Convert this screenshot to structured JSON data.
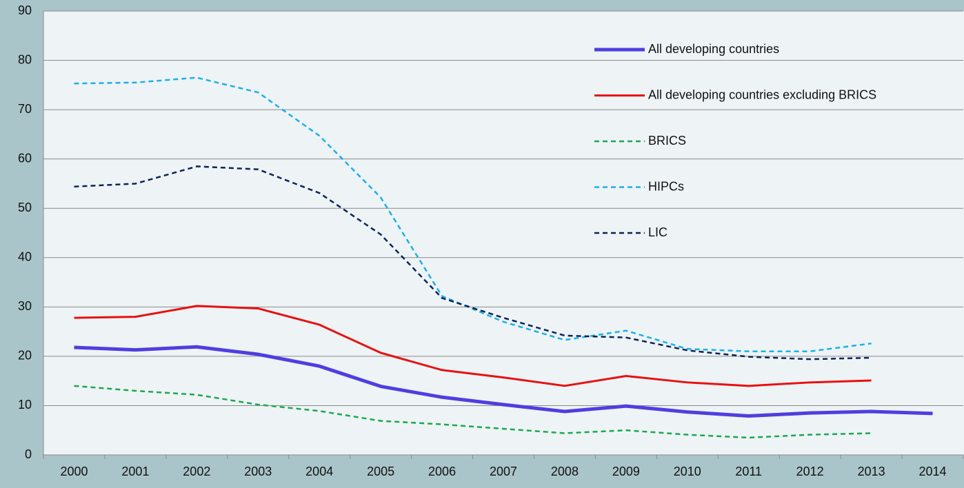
{
  "chart_data": {
    "type": "line",
    "categories": [
      "2000",
      "2001",
      "2002",
      "2003",
      "2004",
      "2005",
      "2006",
      "2007",
      "2008",
      "2009",
      "2010",
      "2011",
      "2012",
      "2013",
      "2014"
    ],
    "series": [
      {
        "name": "All developing countries",
        "color": "#4f3ee0",
        "dashed": false,
        "values": [
          21.8,
          21.3,
          21.9,
          20.4,
          18.0,
          13.9,
          11.7,
          10.2,
          8.8,
          9.9,
          8.7,
          7.9,
          8.5,
          8.8,
          8.4
        ]
      },
      {
        "name": "All developing countries excluding BRICS",
        "color": "#e81010",
        "dashed": false,
        "values": [
          27.8,
          28.0,
          30.2,
          29.7,
          26.4,
          20.7,
          17.2,
          15.7,
          14.0,
          16.0,
          14.7,
          14.0,
          14.7,
          15.1,
          null
        ]
      },
      {
        "name": "BRICS",
        "color": "#1aa84f",
        "dashed": true,
        "values": [
          14.0,
          13.0,
          12.2,
          10.2,
          8.9,
          6.9,
          6.2,
          5.3,
          4.4,
          5.0,
          4.1,
          3.5,
          4.1,
          4.4,
          null
        ]
      },
      {
        "name": "HIPCs",
        "color": "#1ab0e8",
        "dashed": true,
        "values": [
          75.3,
          75.5,
          76.5,
          73.5,
          64.7,
          52.2,
          32.2,
          27.0,
          23.3,
          25.2,
          21.5,
          21.0,
          21.0,
          22.6,
          null
        ]
      },
      {
        "name": "LIC",
        "color": "#0b2457",
        "dashed": true,
        "values": [
          54.4,
          55.0,
          58.5,
          57.9,
          53.1,
          44.7,
          31.8,
          27.8,
          24.2,
          23.8,
          21.2,
          19.9,
          19.4,
          19.7,
          null
        ]
      }
    ],
    "ylim": [
      0,
      90
    ],
    "yticks": [
      0,
      10,
      20,
      30,
      40,
      50,
      60,
      70,
      80,
      90
    ],
    "grid": true,
    "legend": "upper right"
  }
}
